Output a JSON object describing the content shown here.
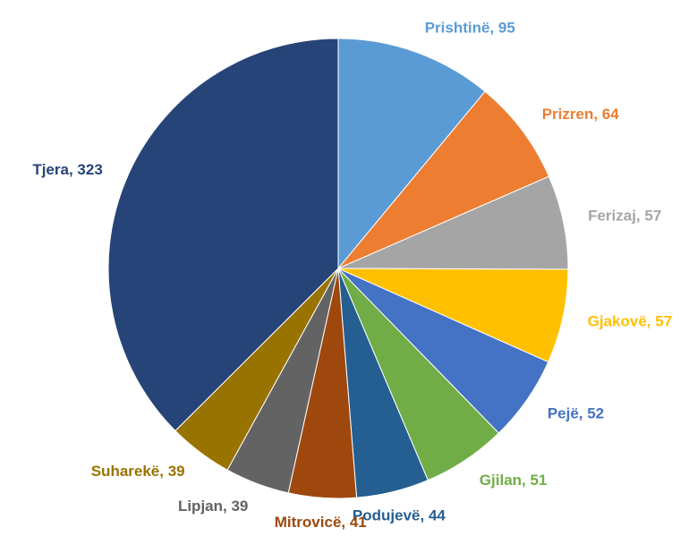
{
  "chart_data": {
    "type": "pie",
    "values": [
      95,
      64,
      57,
      57,
      52,
      51,
      44,
      41,
      39,
      39,
      323
    ],
    "value_labels": [
      "Prishtinë, 95",
      "Prizren, 64",
      "Ferizaj, 57",
      "Gjakovë, 57",
      "Pejë, 52",
      "Gjilan, 51",
      "Podujevë, 44",
      "Mitrovicë, 41",
      "Lipjan, 39",
      "Suharekë, 39",
      "Tjera, 323"
    ],
    "colors": [
      "#5b9bd5",
      "#ed7d31",
      "#a5a5a5",
      "#ffc000",
      "#4472c4",
      "#70ad47",
      "#255e91",
      "#9e480e",
      "#636363",
      "#997300",
      "#264478"
    ]
  }
}
